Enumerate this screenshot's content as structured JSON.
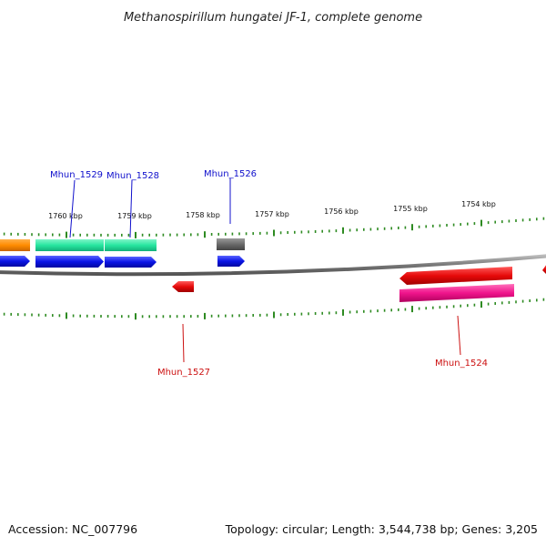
{
  "title": "Methanospirillum hungatei JF-1, complete genome",
  "footer": {
    "accession": "Accession: NC_007796",
    "topology": "Topology: circular; Length: 3,544,738 bp; Genes: 3,205"
  },
  "kbp_labels": [
    "1760 kbp",
    "1759 kbp",
    "1758 kbp",
    "1757 kbp",
    "1756 kbp",
    "1755 kbp",
    "1754 kbp"
  ],
  "gene_labels": {
    "mhun_1529": "Mhun_1529",
    "mhun_1528": "Mhun_1528",
    "mhun_1526": "Mhun_1526",
    "mhun_1527": "Mhun_1527",
    "mhun_1524": "Mhun_1524"
  },
  "colors": {
    "backbone": "#777777",
    "ticks": "#2e8b22",
    "orange": "#ff8c00",
    "teal": "#27e6a0",
    "blue": "#0a14e6",
    "gray": "#6a6a6a",
    "red": "#e60a0a",
    "magenta": "#f0148c",
    "label_blue": "#1010cc",
    "label_red": "#cc1010"
  }
}
